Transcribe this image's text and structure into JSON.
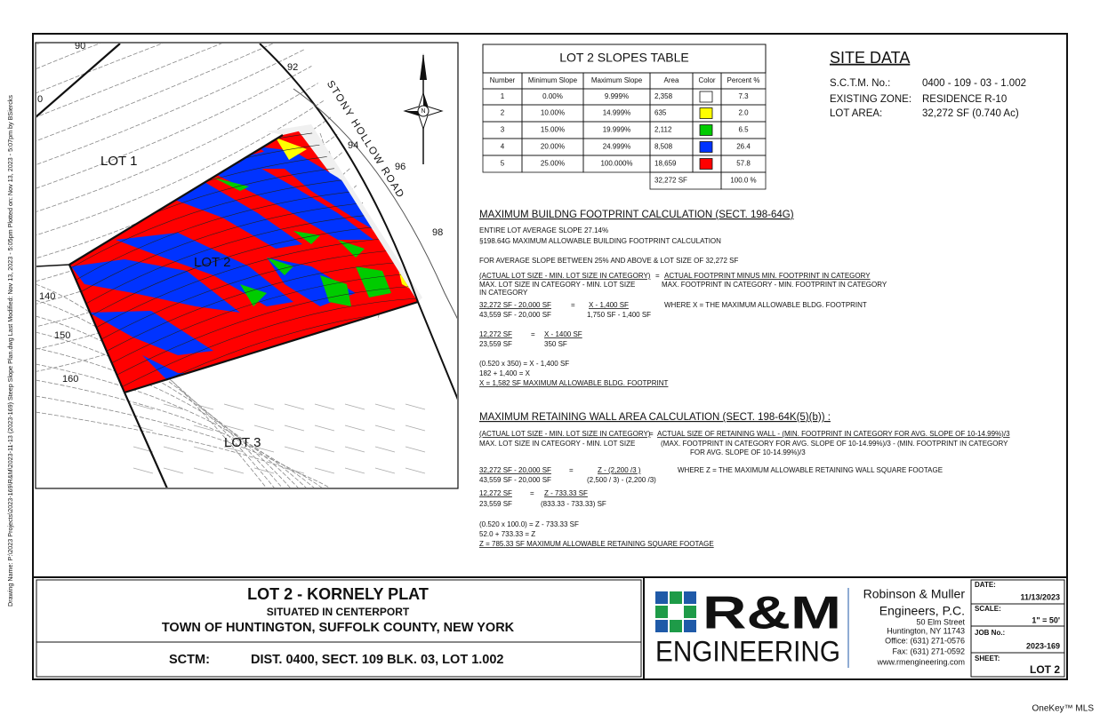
{
  "sidebar": "Drawing Name: P:\\2023 Projects\\2023-169\\R&M\\2023-11-13 (2023-169) Steep Slope Plan.dwg Last Modified: Nov 13, 2023 - 5:05pm Plotted on: Nov 13, 2023 - 5:07pm by BSiercks",
  "map": {
    "lots": [
      "LOT 1",
      "LOT 2",
      "LOT 3"
    ],
    "road": "STONY HOLLOW ROAD",
    "north": "N",
    "contours": [
      "0",
      "90",
      "92",
      "94",
      "96",
      "98",
      "140",
      "150",
      "160"
    ]
  },
  "slopes_table": {
    "title": "LOT 2 SLOPES TABLE",
    "headers": [
      "Number",
      "Minimum Slope",
      "Maximum Slope",
      "Area",
      "Color",
      "Percent %"
    ],
    "rows": [
      [
        "1",
        "0.00%",
        "9.999%",
        "2,358",
        "7.3"
      ],
      [
        "2",
        "10.00%",
        "14.999%",
        "635",
        "2.0"
      ],
      [
        "3",
        "15.00%",
        "19.999%",
        "2,112",
        "6.5"
      ],
      [
        "4",
        "20.00%",
        "24.999%",
        "8,508",
        "26.4"
      ],
      [
        "5",
        "25.00%",
        "100.000%",
        "18,659",
        "57.8"
      ]
    ],
    "swatches": [
      "#ffffff",
      "#ffff00",
      "#00cc00",
      "#0033ff",
      "#ff0000"
    ],
    "total": [
      "32,272 SF",
      "100.0 %"
    ]
  },
  "site_data": {
    "title": "SITE DATA",
    "rows": [
      [
        "S.C.T.M. No.:",
        "0400 - 109 - 03 - 1.002"
      ],
      [
        "EXISTING ZONE:",
        "RESIDENCE R-10"
      ],
      [
        "LOT AREA:",
        "32,272 SF (0.740 Ac)"
      ]
    ]
  },
  "footprint": {
    "title": "MAXIMUM BUILDNG FOOTPRINT CALCULATION (SECT. 198-64G)",
    "lines": [
      "ENTIRE LOT AVERAGE SLOPE 27.14%",
      "§198.64G  MAXIMUM ALLOWABLE BUILDING FOOTPRINT CALCULATION",
      "FOR AVERAGE SLOPE BETWEEN 25% AND ABOVE & LOT SIZE OF 32,272 SF",
      "(ACTUAL LOT SIZE - MIN. LOT SIZE IN CATEGORY)",
      "MAX. LOT SIZE IN CATEGORY - MIN. LOT SIZE",
      "IN CATEGORY",
      "=",
      "ACTUAL FOOTPRINT MINUS MIN. FOOTPRINT IN CATEGORY",
      "MAX. FOOTPRINT IN CATEGORY - MIN. FOOTPRINT IN CATEGORY",
      "32,272 SF - 20,000 SF",
      "43,559 SF - 20,000 SF",
      "=",
      "X - 1,400 SF",
      "1,750 SF - 1,400 SF",
      "WHERE X = THE MAXIMUM ALLOWABLE BLDG. FOOTPRINT",
      "12,272 SF",
      "23,559 SF",
      "=",
      "X - 1400 SF",
      "350 SF",
      "(0.520 x 350) = X - 1,400 SF",
      "182 + 1,400 = X",
      "X = 1,582 SF MAXIMUM ALLOWABLE BLDG. FOOTPRINT"
    ]
  },
  "retaining": {
    "title": "MAXIMUM RETAINING WALL AREA CALCULATION (SECT. 198-64K(5)(b)) :",
    "lines": [
      "(ACTUAL LOT SIZE - MIN. LOT SIZE IN CATEGORY)",
      "MAX. LOT SIZE IN CATEGORY - MIN. LOT SIZE",
      "=",
      "ACTUAL SIZE OF RETAINING WALL - (MIN. FOOTPRINT IN CATEGORY FOR AVG. SLOPE OF 10-14.99%)/3",
      "(MAX. FOOTPRINT IN CATEGORY FOR AVG. SLOPE OF 10-14.99%)/3 - (MIN. FOOTPRINT IN CATEGORY",
      "FOR AVG. SLOPE OF 10-14.99%)/3",
      "32,272 SF - 20,000 SF",
      "43,559 SF - 20,000 SF",
      "=",
      "Z - (2,200 /3 )",
      "(2,500 / 3) - (2,200 /3)",
      "WHERE Z = THE MAXIMUM ALLOWABLE RETAINING WALL SQUARE FOOTAGE",
      "12,272 SF",
      "23,559 SF",
      "=",
      "Z - 733.33 SF",
      "(833.33 - 733.33) SF",
      "(0.520 x 100.0) = Z - 733.33 SF",
      "52.0 + 733.33 = Z",
      "Z =  785.33 SF MAXIMUM ALLOWABLE RETAINING SQUARE FOOTAGE"
    ]
  },
  "title_block": {
    "title": "LOT 2 - KORNELY PLAT",
    "subtitle": "SITUATED IN CENTERPORT",
    "town": "TOWN OF  HUNTINGTON, SUFFOLK COUNTY, NEW YORK",
    "sctm_label": "SCTM:",
    "sctm": "DIST. 0400, SECT. 109 BLK. 03, LOT 1.002"
  },
  "firm": {
    "logo_top": "R&M",
    "logo_bottom": "ENGINEERING",
    "lines": [
      "Robinson & Muller",
      "Engineers, P.C.",
      "50 Elm Street",
      "Huntington, NY 11743",
      "Office: (631) 271-0576",
      "Fax: (631) 271-0592",
      "www.rmengineering.com"
    ]
  },
  "info": [
    {
      "label": "DATE:",
      "value": "11/13/2023"
    },
    {
      "label": "SCALE:",
      "value": "1\" = 50'"
    },
    {
      "label": "JOB No.:",
      "value": "2023-169"
    },
    {
      "label": "SHEET:",
      "value": "LOT 2"
    }
  ],
  "watermark": "OneKey™ MLS"
}
